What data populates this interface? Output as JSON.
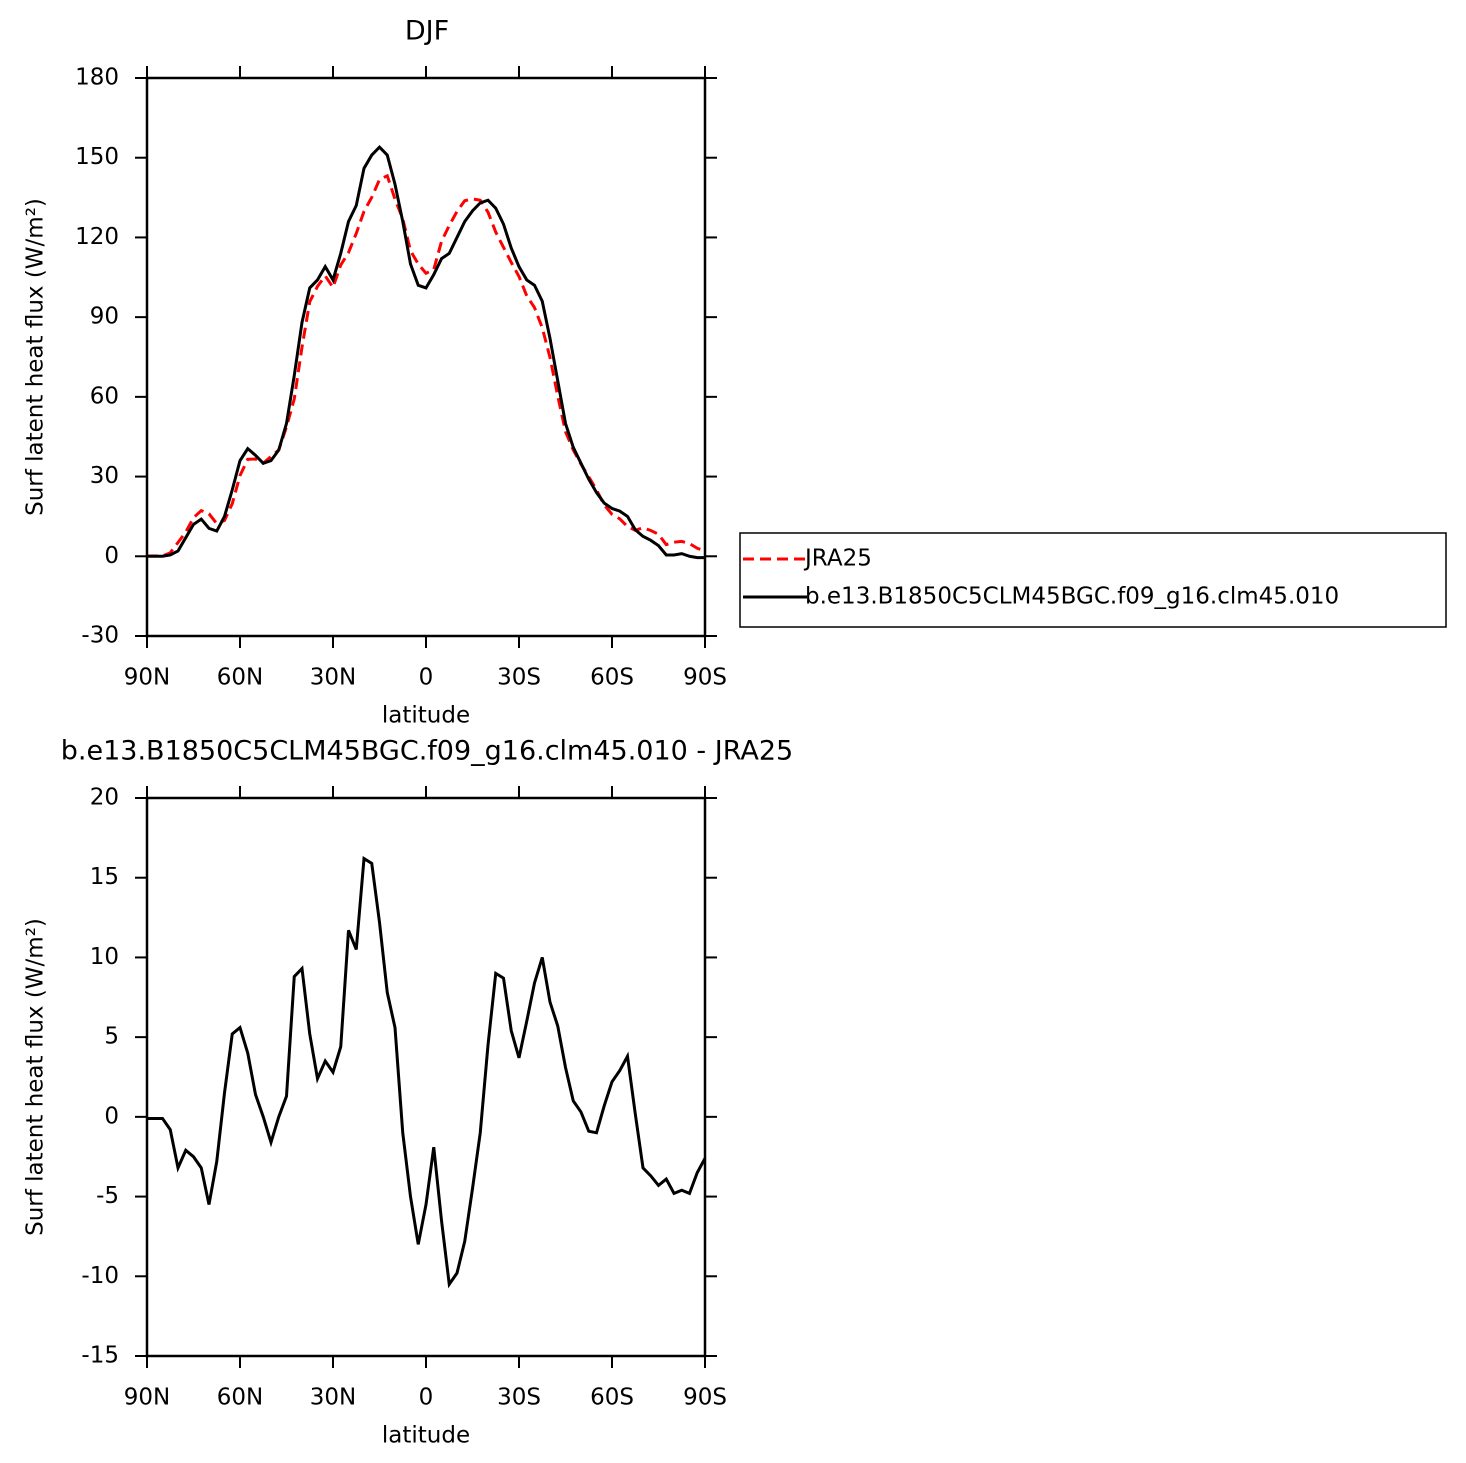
{
  "chart_data": [
    {
      "type": "line",
      "title": "DJF",
      "xlabel": "latitude",
      "ylabel": "Surf latent heat flux (W/m²)",
      "x": [
        90,
        87.5,
        85,
        82.5,
        80,
        77.5,
        75,
        72.5,
        70,
        67.5,
        65,
        62.5,
        60,
        57.5,
        55,
        52.5,
        50,
        47.5,
        45,
        42.5,
        40,
        37.5,
        35,
        32.5,
        30,
        27.5,
        25,
        22.5,
        20,
        17.5,
        15,
        12.5,
        10,
        7.5,
        5,
        2.5,
        0,
        -2.5,
        -5,
        -7.5,
        -10,
        -12.5,
        -15,
        -17.5,
        -20,
        -22.5,
        -25,
        -27.5,
        -30,
        -32.5,
        -35,
        -37.5,
        -40,
        -42.5,
        -45,
        -47.5,
        -50,
        -52.5,
        -55,
        -57.5,
        -60,
        -62.5,
        -65,
        -67.5,
        -70,
        -72.5,
        -75,
        -77.5,
        -80,
        -82.5,
        -85,
        -87.5,
        -90
      ],
      "xlim": [
        90,
        -90
      ],
      "xticks": [
        {
          "value": 90,
          "label": "90N"
        },
        {
          "value": 60,
          "label": "60N"
        },
        {
          "value": 30,
          "label": "30N"
        },
        0,
        {
          "value": -30,
          "label": "30S"
        },
        {
          "value": -60,
          "label": "60S"
        },
        {
          "value": -90,
          "label": "90S"
        }
      ],
      "ylim": [
        -30,
        180
      ],
      "yticks": [
        -30,
        0,
        30,
        60,
        90,
        120,
        150,
        180
      ],
      "legend": "outside-right",
      "series": [
        {
          "name": "JRA25",
          "color": "#ff0000",
          "dashed": true,
          "values": [
            0.1,
            0.1,
            0.1,
            1.3,
            5.2,
            9.1,
            14.5,
            17.2,
            16,
            12.3,
            13.5,
            19.8,
            30.4,
            36.5,
            36.6,
            35,
            37.6,
            40,
            48.7,
            59.2,
            78.7,
            95.8,
            101.6,
            105.5,
            101.2,
            109.6,
            114.3,
            121.5,
            129.8,
            135.1,
            141.8,
            143.2,
            134.4,
            127,
            115,
            110,
            106.5,
            107.9,
            118.5,
            124.5,
            129.8,
            133.8,
            134.5,
            134,
            129.5,
            122,
            116.3,
            110.6,
            105.3,
            98,
            93.6,
            86,
            74.8,
            60.3,
            46.9,
            40,
            34.7,
            29.9,
            25,
            19.3,
            15.8,
            14.1,
            11.2,
            9.8,
            10.7,
            9.7,
            8.3,
            4.4,
            5.3,
            5.6,
            4.8,
            3,
            2.1
          ]
        },
        {
          "name": "b.e13.B1850C5CLM45BGC.f09_g16.clm45.010",
          "color": "#000000",
          "dashed": false,
          "values": [
            0,
            0,
            0,
            0.5,
            2,
            7,
            12,
            14,
            10.5,
            9.5,
            15,
            25,
            36,
            40.5,
            38,
            35,
            36,
            40,
            50,
            68,
            88,
            101,
            104,
            109,
            104,
            114,
            126,
            132,
            146,
            151,
            154,
            151,
            140,
            126,
            110,
            102,
            101,
            106,
            112,
            114,
            120,
            126,
            130,
            133,
            134,
            131,
            125,
            116,
            109,
            104,
            102,
            96,
            82,
            66,
            50,
            41,
            35,
            29,
            24,
            20,
            18,
            17,
            15,
            10,
            7.5,
            6,
            4,
            0.5,
            0.5,
            1,
            0,
            -0.5,
            -0.5
          ]
        }
      ]
    },
    {
      "type": "line",
      "title": "b.e13.B1850C5CLM45BGC.f09_g16.clm45.010 - JRA25",
      "xlabel": "latitude",
      "ylabel": "Surf latent heat flux (W/m²)",
      "x": [
        90,
        87.5,
        85,
        82.5,
        80,
        77.5,
        75,
        72.5,
        70,
        67.5,
        65,
        62.5,
        60,
        57.5,
        55,
        52.5,
        50,
        47.5,
        45,
        42.5,
        40,
        37.5,
        35,
        32.5,
        30,
        27.5,
        25,
        22.5,
        20,
        17.5,
        15,
        12.5,
        10,
        7.5,
        5,
        2.5,
        0,
        -2.5,
        -5,
        -7.5,
        -10,
        -12.5,
        -15,
        -17.5,
        -20,
        -22.5,
        -25,
        -27.5,
        -30,
        -32.5,
        -35,
        -37.5,
        -40,
        -42.5,
        -45,
        -47.5,
        -50,
        -52.5,
        -55,
        -57.5,
        -60,
        -62.5,
        -65,
        -67.5,
        -70,
        -72.5,
        -75,
        -77.5,
        -80,
        -82.5,
        -85,
        -87.5,
        -90
      ],
      "xlim": [
        90,
        -90
      ],
      "xticks": [
        {
          "value": 90,
          "label": "90N"
        },
        {
          "value": 60,
          "label": "60N"
        },
        {
          "value": 30,
          "label": "30N"
        },
        0,
        {
          "value": -30,
          "label": "30S"
        },
        {
          "value": -60,
          "label": "60S"
        },
        {
          "value": -90,
          "label": "90S"
        }
      ],
      "ylim": [
        -15,
        20
      ],
      "yticks": [
        -15,
        -10,
        -5,
        0,
        5,
        10,
        15,
        20
      ],
      "series": [
        {
          "color": "#000000",
          "dashed": false,
          "values": [
            -0.1,
            -0.1,
            -0.1,
            -0.8,
            -3.2,
            -2.1,
            -2.5,
            -3.2,
            -5.5,
            -2.8,
            1.5,
            5.2,
            5.6,
            4,
            1.4,
            0,
            -1.6,
            0,
            1.3,
            8.8,
            9.3,
            5.2,
            2.4,
            3.5,
            2.8,
            4.4,
            11.7,
            10.5,
            16.2,
            15.9,
            12.2,
            7.8,
            5.6,
            -1,
            -5,
            -8,
            -5.5,
            -1.9,
            -6.5,
            -10.5,
            -9.8,
            -7.8,
            -4.5,
            -1,
            4.5,
            9,
            8.7,
            5.4,
            3.7,
            6,
            8.4,
            10,
            7.2,
            5.7,
            3.1,
            1,
            0.3,
            -0.9,
            -1,
            0.7,
            2.2,
            2.9,
            3.8,
            0.2,
            -3.2,
            -3.7,
            -4.3,
            -3.9,
            -4.8,
            -4.6,
            -4.8,
            -3.5,
            -2.6
          ]
        }
      ]
    }
  ]
}
